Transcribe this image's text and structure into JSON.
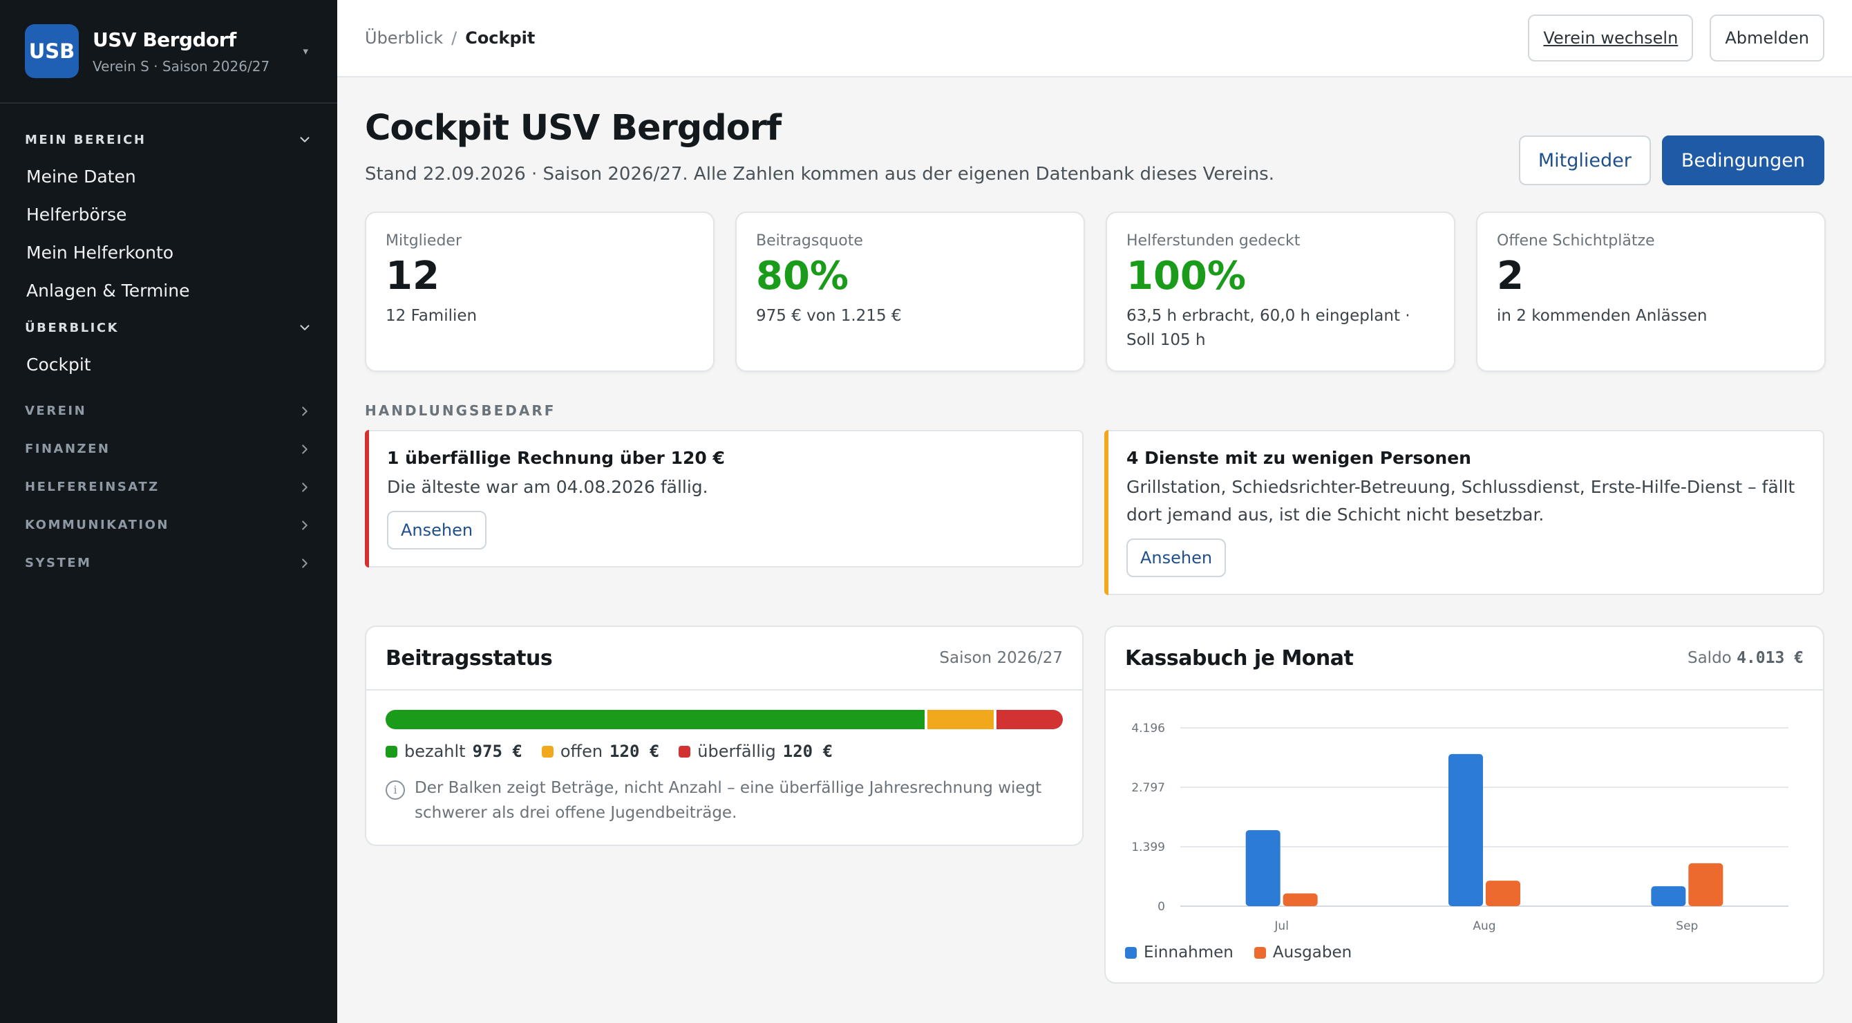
{
  "sidebar": {
    "logo_text": "USB",
    "club_name": "USV Bergdorf",
    "club_sub": "Verein S · Saison 2026/27",
    "sections": [
      {
        "label": "MEIN BEREICH",
        "open": true,
        "items": [
          "Meine Daten",
          "Helferbörse",
          "Mein Helferkonto",
          "Anlagen & Termine"
        ]
      },
      {
        "label": "ÜBERBLICK",
        "open": true,
        "items": [
          "Cockpit"
        ]
      },
      {
        "label": "VEREIN",
        "open": false,
        "items": []
      },
      {
        "label": "FINANZEN",
        "open": false,
        "items": []
      },
      {
        "label": "HELFEREINSATZ",
        "open": false,
        "items": []
      },
      {
        "label": "KOMMUNIKATION",
        "open": false,
        "items": []
      },
      {
        "label": "SYSTEM",
        "open": false,
        "items": []
      }
    ]
  },
  "header": {
    "breadcrumb_parent": "Überblick",
    "breadcrumb_sep": "/",
    "breadcrumb_current": "Cockpit",
    "switch_club": "Verein wechseln",
    "logout": "Abmelden"
  },
  "page": {
    "title": "Cockpit USV Bergdorf",
    "subtitle": "Stand 22.09.2026 · Saison 2026/27. Alle Zahlen kommen aus der eigenen Datenbank dieses Vereins.",
    "btn_members": "Mitglieder",
    "btn_conditions": "Bedingungen"
  },
  "kpis": [
    {
      "label": "Mitglieder",
      "value": "12",
      "note": "12 Familien",
      "accent": false
    },
    {
      "label": "Beitragsquote",
      "value": "80%",
      "note": "975 € von 1.215 €",
      "accent": true
    },
    {
      "label": "Helferstunden gedeckt",
      "value": "100%",
      "note": "63,5 h erbracht, 60,0 h eingeplant · Soll 105 h",
      "accent": true
    },
    {
      "label": "Offene Schichtplätze",
      "value": "2",
      "note": "in 2 kommenden Anlässen",
      "accent": false
    }
  ],
  "actions": {
    "section_title": "HANDLUNGSBEDARF",
    "items": [
      {
        "title": "1 überfällige Rechnung über 120 €",
        "text": "Die älteste war am 04.08.2026 fällig.",
        "button": "Ansehen",
        "severity": "red"
      },
      {
        "title": "4 Dienste mit zu wenigen Personen",
        "text": "Grillstation, Schiedsrichter-Betreuung, Schlussdienst, Erste-Hilfe-Dienst – fällt dort jemand aus, ist die Schicht nicht besetzbar.",
        "button": "Ansehen",
        "severity": "amber"
      }
    ]
  },
  "contributions": {
    "title": "Beitragsstatus",
    "meta": "Saison 2026/27",
    "paid_label": "bezahlt",
    "paid_value": "975 €",
    "paid_amount": 975,
    "open_label": "offen",
    "open_value": "120 €",
    "open_amount": 120,
    "late_label": "überfällig",
    "late_value": "120 €",
    "late_amount": 120,
    "info_icon": "info-icon",
    "note": "Der Balken zeigt Beträge, nicht Anzahl – eine überfällige Jahresrechnung wiegt schwerer als drei offene Jugendbeiträge.",
    "colors": {
      "paid": "#1a9b1a",
      "open": "#f2a81d",
      "late": "#d23232"
    }
  },
  "cashbook": {
    "title": "Kassabuch je Monat",
    "meta_label": "Saldo",
    "meta_value": "4.013 €"
  },
  "chart_data": {
    "type": "bar",
    "categories": [
      "Jul",
      "Aug",
      "Sep"
    ],
    "series": [
      {
        "name": "Einnahmen",
        "color": "#2c7bd6",
        "values": [
          1790,
          3580,
          470
        ]
      },
      {
        "name": "Ausgaben",
        "color": "#ec6a2e",
        "values": [
          300,
          600,
          1010
        ]
      }
    ],
    "yticks": [
      0,
      1399,
      2797,
      4196
    ],
    "ytick_labels": [
      "0",
      "1.399",
      "2.797",
      "4.196"
    ],
    "ylim": [
      0,
      4196
    ],
    "grid": true,
    "legend": "bottom-left"
  }
}
